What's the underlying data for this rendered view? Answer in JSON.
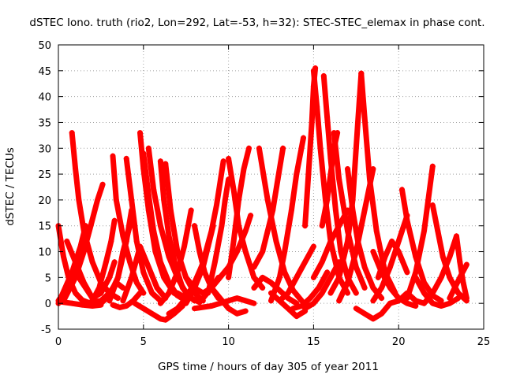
{
  "chart_data": {
    "type": "scatter",
    "title": "dSTEC Iono. truth (rio2, Lon=292, Lat=-53, h=32): STEC-STEC_elemax in phase cont.",
    "xlabel": "GPS time / hours of day 305 of year 2011",
    "ylabel": "dSTEC  / TECUs",
    "xlim": [
      0,
      25
    ],
    "ylim": [
      -5,
      50
    ],
    "xticks": [
      0,
      5,
      10,
      15,
      20,
      25
    ],
    "yticks": [
      -5,
      0,
      5,
      10,
      15,
      20,
      25,
      30,
      35,
      40,
      45,
      50
    ],
    "grid": true,
    "legend": "none",
    "marker": "plus",
    "series_color": "#ff0000",
    "series": [
      {
        "x": [
          0.0,
          0.3,
          0.6,
          1.0,
          1.4,
          1.8,
          2.0
        ],
        "y": [
          15.0,
          9.0,
          5.0,
          2.0,
          0.6,
          0.1,
          0.0
        ]
      },
      {
        "x": [
          0.0,
          0.3,
          0.6,
          0.9,
          1.1,
          1.3,
          1.6
        ],
        "y": [
          0.5,
          2.0,
          4.0,
          7.0,
          9.0,
          11.0,
          15.0
        ]
      },
      {
        "x": [
          0.0,
          0.4,
          0.8,
          1.2,
          1.6,
          2.0
        ],
        "y": [
          0.0,
          3.0,
          6.0,
          5.0,
          3.0,
          1.0
        ]
      },
      {
        "x": [
          0.1,
          0.8,
          1.4,
          2.0,
          2.5
        ],
        "y": [
          0.3,
          0.0,
          -0.3,
          -0.5,
          -0.3
        ]
      },
      {
        "x": [
          0.8,
          1.0,
          1.2,
          1.5,
          2.0,
          2.5,
          3.0,
          3.5
        ],
        "y": [
          33.0,
          26.0,
          20.0,
          14.0,
          8.0,
          4.0,
          2.0,
          1.0
        ]
      },
      {
        "x": [
          0.3,
          1.0,
          1.5,
          1.9,
          2.3,
          2.6
        ],
        "y": [
          0.5,
          5.0,
          10.0,
          15.0,
          20.0,
          23.0
        ]
      },
      {
        "x": [
          0.5,
          1.0,
          1.5,
          2.0,
          2.5,
          3.0,
          3.3
        ],
        "y": [
          12.0,
          8.0,
          4.0,
          1.0,
          2.0,
          5.0,
          8.0
        ]
      },
      {
        "x": [
          1.5,
          2.5,
          3.0,
          3.4,
          3.8
        ],
        "y": [
          0.0,
          0.5,
          2.0,
          4.0,
          3.0
        ]
      },
      {
        "x": [
          2.0,
          2.4,
          2.8,
          3.1,
          3.3
        ],
        "y": [
          0.5,
          3.0,
          8.0,
          12.0,
          16.0
        ]
      },
      {
        "x": [
          3.2,
          3.4,
          3.8,
          4.2,
          4.6,
          5.0
        ],
        "y": [
          28.5,
          20.0,
          13.0,
          8.0,
          4.0,
          2.0
        ]
      },
      {
        "x": [
          2.5,
          3.0,
          3.5,
          3.8,
          4.2
        ],
        "y": [
          0.0,
          1.5,
          5.0,
          10.0,
          15.0
        ]
      },
      {
        "x": [
          3.0,
          3.5,
          4.0,
          4.3
        ],
        "y": [
          0.5,
          5.0,
          12.0,
          18.0
        ]
      },
      {
        "x": [
          3.2,
          3.6,
          4.0,
          4.4,
          4.8
        ],
        "y": [
          -0.3,
          -0.8,
          -0.5,
          0.5,
          2.0
        ]
      },
      {
        "x": [
          4.0,
          4.3,
          4.6,
          5.0,
          5.5,
          6.0
        ],
        "y": [
          28.0,
          20.0,
          12.0,
          6.0,
          2.0,
          0.5
        ]
      },
      {
        "x": [
          4.8,
          5.0,
          5.3,
          5.7,
          6.2,
          6.8,
          7.3
        ],
        "y": [
          33.0,
          26.0,
          18.0,
          10.0,
          5.0,
          2.0,
          1.0
        ]
      },
      {
        "x": [
          5.0,
          5.3,
          5.6,
          6.0,
          6.5,
          7.0,
          7.5
        ],
        "y": [
          29.0,
          21.0,
          14.0,
          8.0,
          4.0,
          1.5,
          0.5
        ]
      },
      {
        "x": [
          5.3,
          5.6,
          6.0,
          6.5,
          7.0,
          7.5,
          8.0
        ],
        "y": [
          30.0,
          22.0,
          15.0,
          9.0,
          5.0,
          2.0,
          0.5
        ]
      },
      {
        "x": [
          3.8,
          4.3,
          4.8,
          5.3,
          5.8,
          6.3
        ],
        "y": [
          0.5,
          5.0,
          11.0,
          7.0,
          3.0,
          1.0
        ]
      },
      {
        "x": [
          4.5,
          5.0,
          5.5,
          6.0,
          6.3,
          6.8,
          7.3
        ],
        "y": [
          0.0,
          -1.0,
          -2.0,
          -3.0,
          -3.2,
          -2.0,
          -0.5
        ]
      },
      {
        "x": [
          6.0,
          6.2,
          6.5,
          6.9,
          7.3,
          7.8,
          8.3
        ],
        "y": [
          27.5,
          20.0,
          13.0,
          7.0,
          3.0,
          1.0,
          0.2
        ]
      },
      {
        "x": [
          6.3,
          6.6,
          7.0,
          7.5,
          8.0,
          8.5
        ],
        "y": [
          27.0,
          18.0,
          10.0,
          5.0,
          2.0,
          0.5
        ]
      },
      {
        "x": [
          6.0,
          6.5,
          7.0,
          7.4,
          7.8
        ],
        "y": [
          0.0,
          2.0,
          6.0,
          11.0,
          18.0
        ]
      },
      {
        "x": [
          6.5,
          7.0,
          7.5,
          8.0,
          8.4
        ],
        "y": [
          -2.0,
          -1.0,
          1.0,
          4.0,
          7.0
        ]
      },
      {
        "x": [
          7.0,
          7.5,
          8.0,
          8.5,
          8.8,
          9.1
        ],
        "y": [
          2.0,
          1.0,
          3.0,
          7.0,
          11.0,
          15.0
        ]
      },
      {
        "x": [
          8.0,
          8.3,
          8.6,
          9.0,
          9.4
        ],
        "y": [
          15.0,
          10.0,
          6.0,
          3.0,
          1.0
        ]
      },
      {
        "x": [
          7.5,
          8.0,
          8.5,
          9.0,
          9.3,
          9.7
        ],
        "y": [
          0.0,
          3.0,
          8.0,
          14.0,
          19.0,
          27.5
        ]
      },
      {
        "x": [
          8.5,
          9.0,
          9.5,
          10.0,
          10.5,
          11.0,
          11.3
        ],
        "y": [
          1.0,
          3.0,
          5.0,
          7.0,
          10.0,
          14.0,
          17.0
        ]
      },
      {
        "x": [
          8.8,
          9.2,
          9.6,
          9.8,
          10.0
        ],
        "y": [
          2.0,
          8.0,
          15.0,
          20.0,
          24.0
        ]
      },
      {
        "x": [
          10.0,
          10.3,
          10.6,
          11.0,
          11.5,
          12.0
        ],
        "y": [
          28.0,
          22.0,
          15.0,
          10.0,
          5.0,
          3.0
        ]
      },
      {
        "x": [
          8.0,
          9.0,
          10.0,
          10.5,
          11.0,
          11.5
        ],
        "y": [
          -1.0,
          -0.5,
          0.5,
          1.0,
          0.5,
          0.0
        ]
      },
      {
        "x": [
          9.0,
          9.5,
          10.0,
          10.5,
          11.0
        ],
        "y": [
          3.0,
          1.0,
          -1.0,
          -2.0,
          -1.5
        ]
      },
      {
        "x": [
          10.0,
          10.3,
          10.6,
          10.9,
          11.2
        ],
        "y": [
          5.0,
          12.0,
          20.0,
          26.0,
          30.0
        ]
      },
      {
        "x": [
          7.5,
          8.0,
          8.5,
          9.0,
          9.4
        ],
        "y": [
          5.0,
          3.0,
          2.0,
          3.0,
          5.0
        ]
      },
      {
        "x": [
          11.5,
          12.0,
          12.5,
          13.0,
          13.5,
          14.0
        ],
        "y": [
          3.0,
          5.0,
          4.0,
          2.5,
          1.0,
          0.0
        ]
      },
      {
        "x": [
          11.5,
          12.0,
          12.3,
          12.6,
          12.9,
          13.2
        ],
        "y": [
          7.0,
          10.0,
          14.0,
          18.0,
          24.0,
          30.0
        ]
      },
      {
        "x": [
          11.8,
          12.3,
          12.8,
          13.3,
          13.8,
          14.3
        ],
        "y": [
          30.0,
          20.0,
          12.0,
          6.0,
          2.5,
          0.5
        ]
      },
      {
        "x": [
          12.5,
          13.0,
          13.3,
          13.7,
          14.0,
          14.4
        ],
        "y": [
          0.5,
          5.0,
          10.0,
          18.0,
          25.0,
          32.0
        ]
      },
      {
        "x": [
          12.5,
          13.0,
          13.5,
          14.0,
          14.5
        ],
        "y": [
          2.0,
          0.5,
          -1.0,
          -2.5,
          -1.5
        ]
      },
      {
        "x": [
          13.0,
          13.5,
          14.0,
          14.5,
          15.0
        ],
        "y": [
          0.5,
          2.0,
          5.0,
          8.0,
          11.0
        ]
      },
      {
        "x": [
          13.8,
          14.3,
          14.8,
          15.3,
          15.8
        ],
        "y": [
          -1.0,
          -0.5,
          1.0,
          3.0,
          6.0
        ]
      },
      {
        "x": [
          14.5,
          14.7,
          14.9,
          15.0,
          15.1
        ],
        "y": [
          15.0,
          25.0,
          35.0,
          42.0,
          45.5
        ]
      },
      {
        "x": [
          15.0,
          15.2,
          15.4,
          15.7,
          16.0,
          16.5,
          17.0
        ],
        "y": [
          45.0,
          38.0,
          30.0,
          20.0,
          12.0,
          5.0,
          2.0
        ]
      },
      {
        "x": [
          15.6,
          15.8,
          16.0,
          16.3,
          16.6,
          17.0,
          17.5
        ],
        "y": [
          44.0,
          36.0,
          28.0,
          18.0,
          10.0,
          5.0,
          2.0
        ]
      },
      {
        "x": [
          14.5,
          15.0,
          15.5,
          16.0,
          16.5
        ],
        "y": [
          -1.0,
          0.0,
          2.0,
          5.0,
          8.0
        ]
      },
      {
        "x": [
          15.5,
          15.8,
          16.0,
          16.2,
          16.4
        ],
        "y": [
          15.0,
          20.0,
          25.0,
          30.0,
          33.0
        ]
      },
      {
        "x": [
          15.0,
          15.5,
          16.0,
          16.5,
          17.0
        ],
        "y": [
          5.0,
          8.0,
          12.0,
          15.0,
          18.0
        ]
      },
      {
        "x": [
          16.2,
          16.5,
          17.0,
          17.5,
          18.0
        ],
        "y": [
          33.0,
          24.0,
          14.0,
          7.0,
          3.0
        ]
      },
      {
        "x": [
          16.0,
          16.5,
          17.0,
          17.3,
          17.6,
          17.8
        ],
        "y": [
          2.0,
          5.0,
          12.0,
          20.0,
          35.0,
          44.5
        ]
      },
      {
        "x": [
          17.8,
          18.0,
          18.3,
          18.7,
          19.2,
          19.8
        ],
        "y": [
          44.5,
          36.0,
          24.0,
          14.0,
          6.0,
          2.0
        ]
      },
      {
        "x": [
          16.5,
          17.0,
          17.5,
          18.0,
          18.5
        ],
        "y": [
          0.5,
          4.0,
          10.0,
          18.0,
          26.0
        ]
      },
      {
        "x": [
          17.0,
          17.3,
          17.6,
          18.0,
          18.5,
          19.0
        ],
        "y": [
          26.0,
          18.0,
          12.0,
          7.0,
          3.0,
          1.0
        ]
      },
      {
        "x": [
          17.5,
          18.0,
          18.5,
          19.0,
          19.5
        ],
        "y": [
          -1.0,
          -2.0,
          -3.0,
          -2.0,
          0.0
        ]
      },
      {
        "x": [
          18.5,
          19.0,
          19.5,
          20.0,
          20.5
        ],
        "y": [
          0.5,
          3.0,
          7.0,
          12.0,
          17.0
        ]
      },
      {
        "x": [
          18.8,
          19.2,
          19.6,
          20.0,
          20.5
        ],
        "y": [
          5.0,
          9.0,
          12.0,
          10.0,
          6.0
        ]
      },
      {
        "x": [
          19.5,
          20.0,
          20.5,
          21.0,
          21.5
        ],
        "y": [
          0.0,
          0.5,
          2.0,
          0.5,
          0.0
        ]
      },
      {
        "x": [
          20.2,
          20.5,
          21.0,
          21.5,
          22.0,
          22.5
        ],
        "y": [
          22.0,
          16.0,
          9.0,
          4.0,
          1.5,
          0.5
        ]
      },
      {
        "x": [
          20.5,
          21.0,
          21.5,
          22.0
        ],
        "y": [
          1.0,
          6.0,
          14.0,
          26.5
        ]
      },
      {
        "x": [
          21.0,
          21.5,
          22.0,
          22.5,
          23.0,
          23.5
        ],
        "y": [
          5.0,
          2.0,
          0.0,
          -0.5,
          0.0,
          1.0
        ]
      },
      {
        "x": [
          22.0,
          22.3,
          22.6,
          23.0,
          23.5,
          24.0
        ],
        "y": [
          19.0,
          14.0,
          9.0,
          5.0,
          2.0,
          0.5
        ]
      },
      {
        "x": [
          21.5,
          22.0,
          22.5,
          23.0,
          23.4
        ],
        "y": [
          0.0,
          2.0,
          5.0,
          9.0,
          13.0
        ]
      },
      {
        "x": [
          23.0,
          23.3,
          23.6,
          24.0
        ],
        "y": [
          1.0,
          3.0,
          5.0,
          7.5
        ]
      },
      {
        "x": [
          23.4,
          23.6,
          23.8,
          24.0
        ],
        "y": [
          13.0,
          8.0,
          4.0,
          1.0
        ]
      },
      {
        "x": [
          18.5,
          19.0,
          19.5,
          20.0,
          20.5,
          21.0
        ],
        "y": [
          10.0,
          6.0,
          3.0,
          1.0,
          0.0,
          -0.5
        ]
      }
    ]
  }
}
